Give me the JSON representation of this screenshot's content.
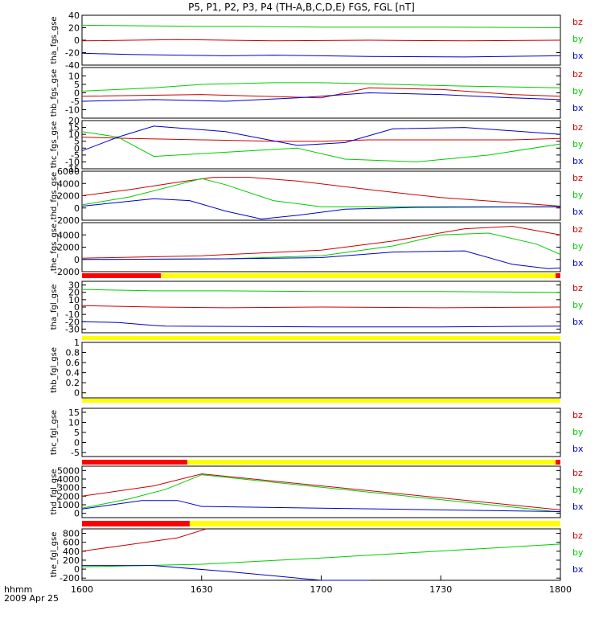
{
  "title": "P5, P1, P2, P3, P4 (TH-A,B,C,D,E) FGS, FGL [nT]",
  "x_axis": {
    "ticks": [
      {
        "label": "1600",
        "hours": 0
      },
      {
        "label": "1630",
        "hours": 0.5
      },
      {
        "label": "1700",
        "hours": 1.0
      },
      {
        "label": "1730",
        "hours": 1.5
      },
      {
        "label": "1800",
        "hours": 2.0
      }
    ],
    "label_line1": "hhmm",
    "label_line2": "2009 Apr 25"
  },
  "colors": {
    "bx": "#0000cc",
    "by": "#00cc00",
    "bz": "#cc0000",
    "bar_yellow": "#ffff00",
    "bar_red": "#ff0000",
    "bar_black": "#000000"
  },
  "chart_data": [
    {
      "type": "line",
      "id": "tha_fgs",
      "ylabel": "tha_fgs_gse",
      "ylim": [
        -40,
        40
      ],
      "yticks": [
        -40,
        -20,
        0,
        20,
        40
      ],
      "legend": [
        "bz",
        "by",
        "bx"
      ],
      "series": [
        {
          "name": "bz",
          "x": [
            0,
            0.4,
            0.6,
            0.8,
            1.2,
            1.6,
            2.0
          ],
          "y": [
            -1,
            1,
            0,
            -1,
            0,
            -1,
            0
          ]
        },
        {
          "name": "by",
          "x": [
            0,
            0.3,
            0.5,
            0.7,
            1.0,
            1.5,
            2.0
          ],
          "y": [
            24,
            23,
            22,
            22,
            21,
            21,
            20
          ]
        },
        {
          "name": "bx",
          "x": [
            0,
            0.2,
            0.4,
            0.6,
            0.8,
            1.2,
            1.6,
            2.0
          ],
          "y": [
            -21,
            -23,
            -24,
            -25,
            -24,
            -26,
            -27,
            -25
          ]
        }
      ]
    },
    {
      "type": "line",
      "id": "thb_fgs",
      "ylabel": "thb_fgs_gse",
      "ylim": [
        -15,
        15
      ],
      "yticks": [
        -10,
        -5,
        0,
        5,
        10
      ],
      "legend": [
        "bz",
        "by",
        "bx"
      ],
      "series": [
        {
          "name": "bz",
          "x": [
            0,
            0.5,
            1.0,
            1.2,
            1.5,
            1.8,
            2.0
          ],
          "y": [
            -2,
            -1,
            -3,
            3,
            2,
            -1,
            -2
          ]
        },
        {
          "name": "by",
          "x": [
            0,
            0.3,
            0.5,
            0.8,
            1.0,
            1.3,
            1.6,
            2.0
          ],
          "y": [
            1,
            3,
            5,
            6,
            6,
            5,
            4,
            3
          ]
        },
        {
          "name": "bx",
          "x": [
            0,
            0.3,
            0.6,
            0.9,
            1.2,
            1.5,
            1.8,
            2.0
          ],
          "y": [
            -5,
            -4,
            -5,
            -3,
            0,
            -1,
            -3,
            -4
          ]
        }
      ]
    },
    {
      "type": "line",
      "id": "thc_fgs",
      "ylabel": "thc_fgs_gse",
      "ylim": [
        -15,
        20
      ],
      "yticks": [
        -15,
        -10,
        -5,
        0,
        5,
        10,
        15,
        20
      ],
      "legend": [
        "bz",
        "by",
        "bx"
      ],
      "series": [
        {
          "name": "bz",
          "x": [
            0,
            0.2,
            0.5,
            0.8,
            1.0,
            1.2,
            1.5,
            1.8,
            2.0
          ],
          "y": [
            8,
            7,
            6,
            5,
            5,
            6,
            6,
            6,
            7
          ]
        },
        {
          "name": "by",
          "x": [
            0,
            0.15,
            0.3,
            0.6,
            0.9,
            1.1,
            1.4,
            1.7,
            2.0
          ],
          "y": [
            12,
            8,
            -6,
            -3,
            0,
            -8,
            -10,
            -5,
            3
          ]
        },
        {
          "name": "bx",
          "x": [
            0,
            0.15,
            0.3,
            0.6,
            0.9,
            1.1,
            1.3,
            1.6,
            2.0
          ],
          "y": [
            -2,
            8,
            16,
            12,
            2,
            4,
            14,
            15,
            10
          ]
        }
      ]
    },
    {
      "type": "line",
      "id": "thd_fgs",
      "ylabel": "thd_fgs_gse",
      "ylim": [
        -2000,
        6000
      ],
      "yticks": [
        -2000,
        0,
        2000,
        4000,
        6000
      ],
      "legend": [
        "bz",
        "by",
        "bx"
      ],
      "series": [
        {
          "name": "bz",
          "x": [
            0,
            0.2,
            0.4,
            0.55,
            0.7,
            0.9,
            1.2,
            1.5,
            2.0
          ],
          "y": [
            2000,
            3000,
            4200,
            5000,
            5000,
            4400,
            3000,
            1700,
            300
          ]
        },
        {
          "name": "by",
          "x": [
            0,
            0.2,
            0.4,
            0.5,
            0.6,
            0.8,
            1.0,
            1.3,
            2.0
          ],
          "y": [
            500,
            1800,
            3800,
            4800,
            3800,
            1200,
            200,
            200,
            200
          ]
        },
        {
          "name": "bx",
          "x": [
            0,
            0.3,
            0.45,
            0.6,
            0.75,
            0.9,
            1.1,
            1.4,
            2.0
          ],
          "y": [
            300,
            1500,
            1200,
            -500,
            -1800,
            -1200,
            -200,
            100,
            200
          ]
        }
      ]
    },
    {
      "type": "line",
      "id": "the_fgs",
      "ylabel": "the_fgs_gse",
      "ylim": [
        -2000,
        6000
      ],
      "yticks": [
        -2000,
        0,
        2000,
        4000
      ],
      "legend": [
        "bz",
        "by",
        "bx"
      ],
      "series": [
        {
          "name": "bz",
          "x": [
            0,
            0.5,
            1.0,
            1.3,
            1.6,
            1.8,
            2.0
          ],
          "y": [
            200,
            600,
            1500,
            3000,
            5000,
            5400,
            4000
          ]
        },
        {
          "name": "by",
          "x": [
            0,
            0.6,
            1.0,
            1.3,
            1.5,
            1.7,
            1.9,
            2.0
          ],
          "y": [
            0,
            100,
            600,
            2200,
            4000,
            4300,
            2500,
            800
          ]
        },
        {
          "name": "bx",
          "x": [
            0,
            0.6,
            1.0,
            1.3,
            1.6,
            1.8,
            1.95,
            2.0
          ],
          "y": [
            0,
            100,
            300,
            1200,
            1400,
            -800,
            -1500,
            -1400
          ]
        }
      ]
    },
    {
      "type": "line",
      "id": "tha_fgl",
      "ylabel": "tha_fgl_gse",
      "ylim": [
        -35,
        35
      ],
      "yticks": [
        -30,
        -20,
        -10,
        0,
        10,
        20,
        30
      ],
      "legend": [
        "bz",
        "by",
        "bx"
      ],
      "series": [
        {
          "name": "bz",
          "x": [
            0,
            0.3,
            0.6,
            1.0,
            1.5,
            2.0
          ],
          "y": [
            2,
            0,
            -1,
            0,
            -1,
            0
          ]
        },
        {
          "name": "by",
          "x": [
            0,
            0.3,
            0.6,
            1.0,
            1.5,
            2.0
          ],
          "y": [
            24,
            22,
            22,
            21,
            21,
            20
          ]
        },
        {
          "name": "bx",
          "x": [
            0,
            0.15,
            0.3,
            0.35,
            1.0,
            1.5,
            2.0
          ],
          "y": [
            -20,
            -21,
            -25,
            -26,
            -27,
            -27,
            -26
          ]
        }
      ]
    },
    {
      "type": "line",
      "id": "thb_fgl",
      "ylabel": "thb_fgl_gse",
      "ylim": [
        -0.1,
        1.0
      ],
      "yticks": [
        -0.0,
        0.2,
        0.4,
        0.6,
        0.8,
        1.0
      ],
      "legend": [],
      "series": []
    },
    {
      "type": "line",
      "id": "thc_fgl",
      "ylabel": "thc_fgl_gse",
      "ylim": [
        -7,
        17
      ],
      "yticks": [
        -5,
        0,
        5,
        10,
        15
      ],
      "legend": [
        "bz",
        "by",
        "bx"
      ],
      "series": []
    },
    {
      "type": "line",
      "id": "thd_fgl",
      "ylabel": "thd_fgl_gse",
      "ylim": [
        -500,
        5500
      ],
      "yticks": [
        0,
        1000,
        2000,
        3000,
        4000,
        5000
      ],
      "legend": [
        "bz",
        "by",
        "bx"
      ],
      "series": [
        {
          "name": "bz",
          "x": [
            0,
            0.3,
            0.5,
            2.0
          ],
          "y": [
            2000,
            3200,
            4600,
            400
          ]
        },
        {
          "name": "by",
          "x": [
            0,
            0.2,
            0.35,
            0.5,
            2.0
          ],
          "y": [
            600,
            1700,
            2800,
            4500,
            150
          ]
        },
        {
          "name": "bx",
          "x": [
            0,
            0.25,
            0.4,
            0.5,
            2.0
          ],
          "y": [
            500,
            1500,
            1500,
            800,
            200
          ]
        }
      ]
    },
    {
      "type": "line",
      "id": "the_fgl",
      "ylabel": "the_fgl_gse",
      "ylim": [
        -250,
        900
      ],
      "yticks": [
        -200,
        0,
        200,
        400,
        600,
        800
      ],
      "legend": [
        "bz",
        "by",
        "bx"
      ],
      "series": [
        {
          "name": "bz",
          "x": [
            0,
            0.2,
            0.4,
            0.52
          ],
          "y": [
            400,
            550,
            700,
            900
          ]
        },
        {
          "name": "by",
          "x": [
            0,
            0.5,
            1.0,
            2.0
          ],
          "y": [
            50,
            110,
            250,
            560
          ]
        },
        {
          "name": "bx",
          "x": [
            0,
            0.3,
            0.6,
            0.8,
            1.0,
            1.2
          ],
          "y": [
            80,
            80,
            -50,
            -150,
            -250,
            -250
          ]
        }
      ]
    }
  ],
  "status_bars": [
    {
      "after": "the_fgs",
      "red_hours": [
        [
          0,
          0.33
        ],
        [
          1.98,
          2.0
        ]
      ]
    },
    {
      "after": "tha_fgl",
      "red_hours": []
    },
    {
      "after": "thb_fgl",
      "red_hours": []
    },
    {
      "after": "thc_fgl",
      "red_hours": [
        [
          0,
          0.44
        ],
        [
          1.98,
          2.0
        ]
      ]
    },
    {
      "after": "thd_fgl",
      "red_hours": [
        [
          0,
          0.45
        ]
      ]
    }
  ]
}
